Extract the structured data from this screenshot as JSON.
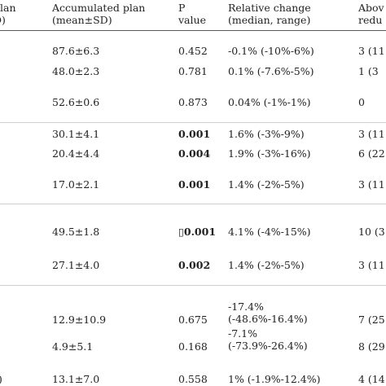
{
  "header": {
    "left_line1": "plan",
    "left_line2": "D)",
    "accumulated_line1": "Accumulated plan",
    "accumulated_line2": "(mean±SD)",
    "p_line1": "P",
    "p_line2": "value",
    "relative_line1": "Relative change",
    "relative_line2": "(median, range)",
    "above_line1": "Abov",
    "above_line2": "redu"
  },
  "rows": [
    {
      "accumulated": "87.6±6.3",
      "p": "0.452",
      "p_bold": false,
      "relative": "-0.1% (-10%-6%)",
      "above": "3 (11"
    },
    {
      "accumulated": "48.0±2.3",
      "p": "0.781",
      "p_bold": false,
      "relative": "0.1% (-7.6%-5%)",
      "above": "1 (3"
    },
    {
      "accumulated": "52.6±0.6",
      "p": "0.873",
      "p_bold": false,
      "relative": "0.04% (-1%-1%)",
      "above": "0"
    },
    {
      "accumulated": "30.1±4.1",
      "p": "0.001",
      "p_bold": true,
      "relative": "1.6% (-3%-9%)",
      "above": "3 (11"
    },
    {
      "accumulated": "20.4±4.4",
      "p": "0.004",
      "p_bold": true,
      "relative": "1.9% (-3%-16%)",
      "above": "6 (22"
    },
    {
      "accumulated": "17.0±2.1",
      "p": "0.001",
      "p_bold": true,
      "relative": "1.4% (-2%-5%)",
      "above": "3 (11"
    },
    {
      "accumulated": "49.5±1.8",
      "p": "▯0.001",
      "p_bold": true,
      "relative": "4.1% (-4%-15%)",
      "above": "10 (3"
    },
    {
      "accumulated": "27.1±4.0",
      "p": "0.002",
      "p_bold": true,
      "relative": "1.4% (-2%-5%)",
      "above": "3 (11"
    },
    {
      "accumulated": "12.9±10.9",
      "p": "0.675",
      "p_bold": false,
      "relative_line1": "-17.4%",
      "relative_line2": "(-48.6%-16.4%)",
      "above": "7 (25"
    },
    {
      "accumulated": "4.9±5.1",
      "p": "0.168",
      "p_bold": false,
      "relative_line1": "-7.1%",
      "relative_line2": "(-73.9%-26.4%)",
      "above": "8 (29"
    },
    {
      "left_fragment": ")",
      "accumulated": "13.1±7.0",
      "p": "0.558",
      "p_bold": false,
      "relative": "1% (-1.9%-12.4%)",
      "above": "4 (14"
    }
  ]
}
